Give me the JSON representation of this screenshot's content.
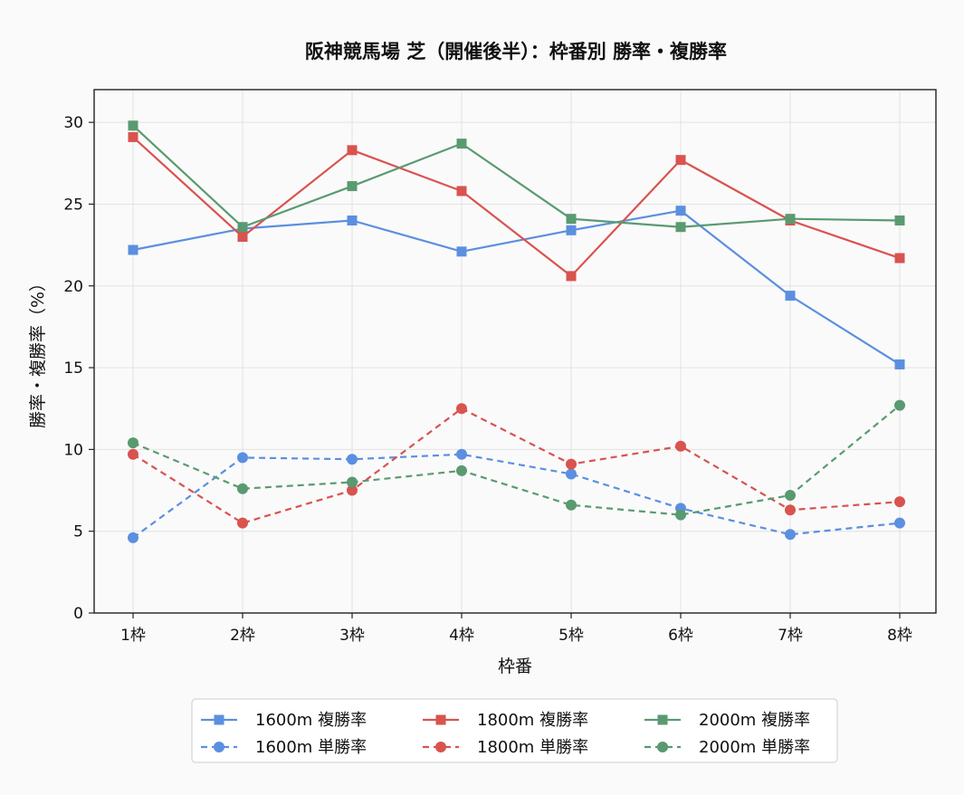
{
  "chart_data": {
    "type": "line",
    "title": "阪神競馬場 芝（開催後半）：枠番別 勝率・複勝率",
    "xlabel": "枠番",
    "ylabel": "勝率・複勝率（%）",
    "categories": [
      "1枠",
      "2枠",
      "3枠",
      "4枠",
      "5枠",
      "6枠",
      "7枠",
      "8枠"
    ],
    "ylim": [
      0,
      32
    ],
    "yticks": [
      0,
      5,
      10,
      15,
      20,
      25,
      30
    ],
    "grid": true,
    "legend_position": "bottom-center",
    "series": [
      {
        "name": "1600m 複勝率",
        "color": "#5b8fe0",
        "line": "solid",
        "marker": "square",
        "values": [
          22.2,
          23.5,
          24.0,
          22.1,
          23.4,
          24.6,
          19.4,
          15.2
        ]
      },
      {
        "name": "1600m 単勝率",
        "color": "#5b8fe0",
        "line": "dashed",
        "marker": "circle",
        "values": [
          4.6,
          9.5,
          9.4,
          9.7,
          8.5,
          6.4,
          4.8,
          5.5
        ]
      },
      {
        "name": "1800m 複勝率",
        "color": "#d9534f",
        "line": "solid",
        "marker": "square",
        "values": [
          29.1,
          23.0,
          28.3,
          25.8,
          20.6,
          27.7,
          24.0,
          21.7
        ]
      },
      {
        "name": "1800m 単勝率",
        "color": "#d9534f",
        "line": "dashed",
        "marker": "circle",
        "values": [
          9.7,
          5.5,
          7.5,
          12.5,
          9.1,
          10.2,
          6.3,
          6.8
        ]
      },
      {
        "name": "2000m 複勝率",
        "color": "#5a9a70",
        "line": "solid",
        "marker": "square",
        "values": [
          29.8,
          23.6,
          26.1,
          28.7,
          24.1,
          23.6,
          24.1,
          24.0
        ]
      },
      {
        "name": "2000m 単勝率",
        "color": "#5a9a70",
        "line": "dashed",
        "marker": "circle",
        "values": [
          10.4,
          7.6,
          8.0,
          8.7,
          6.6,
          6.0,
          7.2,
          12.7
        ]
      }
    ]
  }
}
